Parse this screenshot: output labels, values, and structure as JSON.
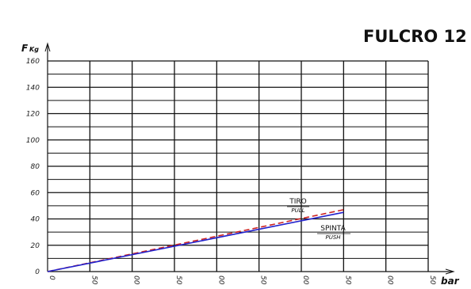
{
  "chart_data": {
    "type": "line",
    "title": "FULCRO 12",
    "ylabel": "F",
    "ylabel_unit": "Kg",
    "xlabel": "bar",
    "ylim": [
      0,
      160
    ],
    "yticks": [
      0,
      20,
      40,
      60,
      80,
      100,
      120,
      140,
      160
    ],
    "xlim": [
      0,
      450
    ],
    "xticks": [
      0,
      50,
      100,
      150,
      200,
      250,
      300,
      350,
      400,
      450
    ],
    "xtick_labels": [
      "0",
      "50",
      "00",
      "50",
      "00",
      "50",
      "00",
      "50",
      "00",
      "50"
    ],
    "grid": true,
    "series": [
      {
        "name": "TIRO",
        "subname": "PULL",
        "style": "dashed",
        "color": "#cc2222",
        "x": [
          0,
          350
        ],
        "y": [
          0,
          47
        ]
      },
      {
        "name": "SPINTA",
        "subname": "PUSH",
        "style": "solid",
        "color": "#2222cc",
        "x": [
          0,
          350
        ],
        "y": [
          0,
          45
        ]
      }
    ]
  }
}
